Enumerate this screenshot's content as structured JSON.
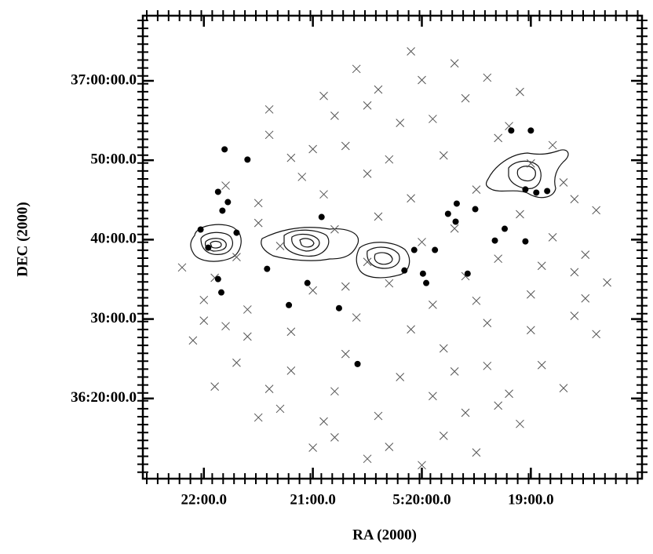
{
  "chart_data": {
    "type": "scatter",
    "xlabel": "RA (2000)",
    "ylabel": "DEC (2000)",
    "xlim": [
      22.56,
      17.98
    ],
    "ylim": [
      9.9,
      68.2
    ],
    "xticks": [
      {
        "value": 22,
        "label": "22:00.0"
      },
      {
        "value": 21,
        "label": "21:00.0"
      },
      {
        "value": 20,
        "label": "5:20:00.0"
      },
      {
        "value": 19,
        "label": "19:00.0"
      }
    ],
    "yticks": [
      {
        "value": 60,
        "label": "37:00:00.0"
      },
      {
        "value": 50,
        "label": "50:00.0"
      },
      {
        "value": 40,
        "label": "40:00.0"
      },
      {
        "value": 30,
        "label": "30:00.0"
      },
      {
        "value": 20,
        "label": "36:20:00.0"
      }
    ],
    "series": [
      {
        "marker": "x",
        "color": "#555555",
        "x": [
          21.9,
          21.5,
          21.2,
          20.8,
          20.4,
          20.0,
          19.6,
          19.2,
          18.7,
          18.5,
          18.6,
          18.9,
          19.3,
          19.8,
          20.3,
          20.8,
          21.3,
          21.7,
          22.0,
          22.2,
          21.8,
          21.4,
          20.9,
          20.6,
          20.1,
          19.7,
          19.4,
          19.1,
          18.8,
          18.4,
          18.3,
          18.4,
          18.7,
          19.1,
          19.5,
          20.0,
          20.5,
          21.0,
          21.5,
          21.9,
          22.1,
          21.6,
          21.2,
          20.7,
          20.2,
          19.8,
          19.4,
          19.0,
          19.3,
          19.7,
          20.1,
          20.5,
          20.9,
          21.3,
          21.0,
          20.6,
          20.3,
          19.9,
          19.6,
          20.0,
          20.4,
          20.7,
          20.2,
          19.8,
          19.5,
          19.1,
          18.8,
          18.6,
          19.0,
          19.4,
          19.9,
          20.4,
          20.8,
          21.2,
          21.6,
          22.0,
          21.7,
          21.5,
          21.1,
          20.8,
          20.5,
          20.1,
          19.7,
          19.2,
          18.9,
          18.6,
          19.0,
          19.3,
          19.9,
          20.3,
          21.0,
          21.4,
          20.5,
          19.6,
          20.9,
          21.4,
          21.8,
          18.5,
          19.5,
          20.7
        ],
        "values": [
          35.2,
          42.1,
          50.3,
          55.6,
          58.9,
          60.1,
          57.8,
          54.3,
          47.2,
          38.1,
          30.4,
          24.2,
          19.1,
          15.3,
          13.9,
          15.1,
          18.7,
          24.5,
          29.8,
          36.5,
          46.8,
          53.2,
          58.1,
          61.5,
          63.7,
          62.2,
          60.4,
          58.6,
          51.9,
          43.7,
          34.6,
          28.1,
          21.3,
          16.8,
          13.2,
          11.6,
          12.4,
          13.8,
          17.6,
          21.5,
          27.3,
          31.2,
          28.4,
          25.6,
          22.7,
          26.3,
          29.5,
          33.1,
          37.6,
          41.4,
          45.2,
          48.3,
          45.7,
          39.2,
          33.6,
          30.2,
          34.5,
          31.8,
          35.4,
          39.7,
          42.9,
          51.8,
          54.7,
          50.6,
          46.3,
          43.2,
          40.3,
          35.9,
          28.6,
          24.1,
          20.3,
          17.8,
          20.9,
          23.5,
          27.8,
          32.4,
          37.8,
          44.6,
          47.9,
          41.3,
          37.2,
          28.7,
          23.4,
          20.6,
          36.7,
          45.1,
          49.6,
          52.8,
          55.2,
          50.1,
          51.4,
          56.4,
          56.9,
          18.2,
          17.1,
          21.2,
          29.1,
          32.6,
          32.3,
          34.1
        ]
      },
      {
        "marker": "dot",
        "color": "#000000",
        "x": [
          21.81,
          21.6,
          21.87,
          21.78,
          21.83,
          20.92,
          21.7,
          21.87,
          21.84,
          21.42,
          21.05,
          21.22,
          20.76,
          20.59,
          20.07,
          19.88,
          19.99,
          19.96,
          20.16,
          19.76,
          19.68,
          19.69,
          19.51,
          19.58,
          19.33,
          19.24,
          19.05,
          19.18,
          19.0,
          19.05,
          18.95,
          18.85,
          22.03,
          21.96
        ],
        "values": [
          51.37,
          50.08,
          46.02,
          44.73,
          43.65,
          42.85,
          40.87,
          35.03,
          33.35,
          36.32,
          34.54,
          31.76,
          31.37,
          24.34,
          38.7,
          38.7,
          35.72,
          34.54,
          36.12,
          43.25,
          44.54,
          42.26,
          43.84,
          35.72,
          39.88,
          41.37,
          39.78,
          53.74,
          53.74,
          46.32,
          45.92,
          46.12,
          41.27,
          38.99
        ]
      }
    ]
  }
}
